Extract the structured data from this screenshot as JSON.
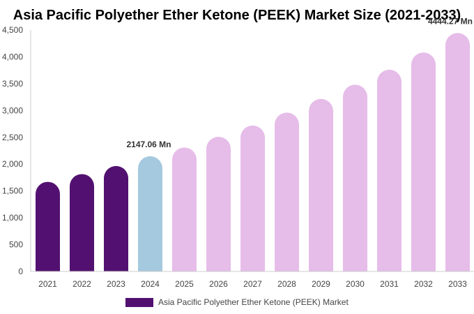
{
  "colors": {
    "historical": "#521170",
    "current": "#a5c9de",
    "forecast": "#e6bce9",
    "axis": "#cccccc"
  },
  "chart_data": {
    "type": "bar",
    "title": "Asia Pacific Polyether Ether Ketone (PEEK) Market Size (2021-2033)",
    "xlabel": "",
    "ylabel": "",
    "ylim": [
      0,
      4500
    ],
    "yticks": [
      0,
      500,
      1000,
      1500,
      2000,
      2500,
      3000,
      3500,
      4000,
      4500
    ],
    "ytick_labels": [
      "0",
      "500",
      "1,000",
      "1,500",
      "2,000",
      "2,500",
      "3,000",
      "3,500",
      "4,000",
      "4,500"
    ],
    "grid": false,
    "legend_position": "bottom",
    "categories": [
      "2021",
      "2022",
      "2023",
      "2024",
      "2025",
      "2026",
      "2027",
      "2028",
      "2029",
      "2030",
      "2031",
      "2032",
      "2033"
    ],
    "series": [
      {
        "name": "Asia Pacific Polyether Ether Ketone (PEEK) Market",
        "values": [
          1670,
          1815,
          1965,
          2147.06,
          2310,
          2510,
          2720,
          2960,
          3215,
          3480,
          3760,
          4080,
          4444.27
        ]
      }
    ],
    "bar_colors": [
      "historical",
      "historical",
      "historical",
      "current",
      "forecast",
      "forecast",
      "forecast",
      "forecast",
      "forecast",
      "forecast",
      "forecast",
      "forecast",
      "forecast"
    ],
    "annotations": [
      {
        "index": 3,
        "text": "2147.06 Mn"
      },
      {
        "index": 12,
        "text": "4444.27 Mn"
      }
    ]
  }
}
